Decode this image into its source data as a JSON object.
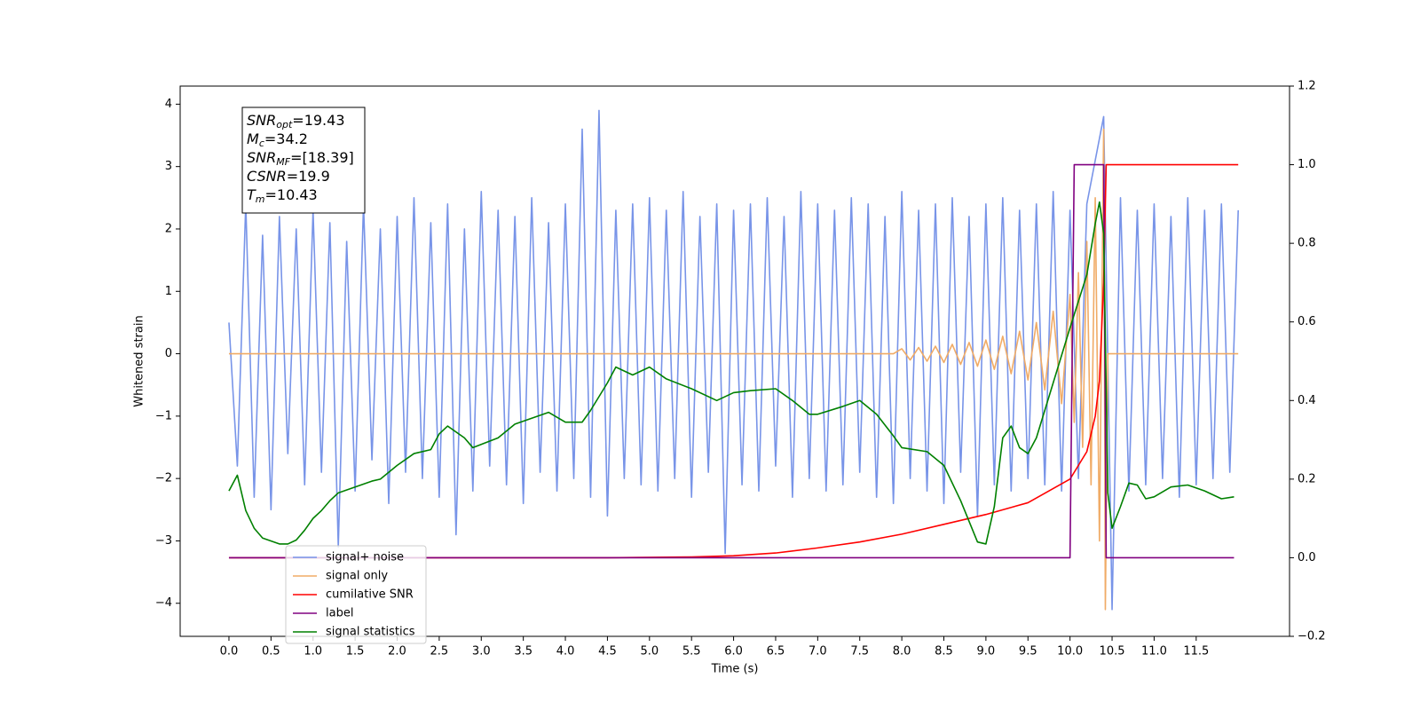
{
  "chart_data": {
    "type": "line",
    "xlabel": "Time (s)",
    "ylabel": "Whitened strain",
    "xlim": [
      -0.58,
      12.61
    ],
    "ylim": [
      -4.53,
      4.29
    ],
    "y2lim": [
      -0.2,
      1.2
    ],
    "xticks": [
      {
        "value": 0,
        "label": "0.0"
      },
      0.5,
      {
        "value": 1,
        "label": "1.0"
      },
      1.5,
      {
        "value": 2,
        "label": "2.0"
      },
      2.5,
      {
        "value": 3,
        "label": "3.0"
      },
      3.5,
      {
        "value": 4,
        "label": "4.0"
      },
      4.5,
      {
        "value": 5,
        "label": "5.0"
      },
      5.5,
      {
        "value": 6,
        "label": "6.0"
      },
      6.5,
      {
        "value": 7,
        "label": "7.0"
      },
      7.5,
      {
        "value": 8,
        "label": "8.0"
      },
      8.5,
      {
        "value": 9,
        "label": "9.0"
      },
      9.5,
      {
        "value": 10,
        "label": "10.0"
      },
      10.5,
      {
        "value": 11,
        "label": "11.0"
      },
      11.5
    ],
    "yticks": [
      {
        "value": -4,
        "label": "−4"
      },
      {
        "value": -3,
        "label": "−3"
      },
      {
        "value": -2,
        "label": "−2"
      },
      {
        "value": -1,
        "label": "−1"
      },
      0,
      1,
      2,
      3,
      4
    ],
    "y2ticks": [
      {
        "value": -0.2,
        "label": "−0.2"
      },
      {
        "value": 0,
        "label": "0.0"
      },
      0.2,
      0.4,
      0.6,
      0.8,
      {
        "value": 1,
        "label": "1.0"
      },
      1.2
    ],
    "legend": "lower left",
    "annotations": [
      {
        "main": "SNR",
        "sub": "opt",
        "text": "=19.43"
      },
      {
        "main": "M",
        "sub": "c",
        "text": "=34.2"
      },
      {
        "main": "SNR",
        "sub": "MF",
        "text": "=[18.39]"
      },
      {
        "main": "CSNR",
        "text": "=19.9"
      },
      {
        "main": "T",
        "sub": "m",
        "text": "=10.43"
      }
    ],
    "series": [
      {
        "name": "signal+ noise",
        "color": "#7894e8",
        "axis": "y",
        "x": [
          0,
          0.1,
          0.2,
          0.3,
          0.4,
          0.5,
          0.6,
          0.7,
          0.8,
          0.9,
          1,
          1.1,
          1.2,
          1.3,
          1.4,
          1.5,
          1.6,
          1.7,
          1.8,
          1.9,
          2,
          2.1,
          2.2,
          2.3,
          2.4,
          2.5,
          2.6,
          2.7,
          2.8,
          2.9,
          3,
          3.1,
          3.2,
          3.3,
          3.4,
          3.5,
          3.6,
          3.7,
          3.8,
          3.9,
          4,
          4.1,
          4.2,
          4.3,
          4.4,
          4.5,
          4.6,
          4.7,
          4.8,
          4.9,
          5,
          5.1,
          5.2,
          5.3,
          5.4,
          5.5,
          5.6,
          5.7,
          5.8,
          5.9,
          6,
          6.1,
          6.2,
          6.3,
          6.4,
          6.5,
          6.6,
          6.7,
          6.8,
          6.9,
          7,
          7.1,
          7.2,
          7.3,
          7.4,
          7.5,
          7.6,
          7.7,
          7.8,
          7.9,
          8,
          8.1,
          8.2,
          8.3,
          8.4,
          8.5,
          8.6,
          8.7,
          8.8,
          8.9,
          9,
          9.1,
          9.2,
          9.3,
          9.4,
          9.5,
          9.6,
          9.7,
          9.8,
          9.9,
          10,
          10.1,
          10.2,
          10.3,
          10.4,
          10.5,
          10.6,
          10.7,
          10.8,
          10.9,
          11,
          11.1,
          11.2,
          11.3,
          11.4,
          11.5,
          11.6,
          11.7,
          11.8,
          11.9,
          12
        ],
        "values": [
          0.5,
          -1.8,
          2.4,
          -2.3,
          1.9,
          -2.5,
          2.2,
          -1.6,
          2.0,
          -2.1,
          2.3,
          -1.9,
          2.1,
          -3.1,
          1.8,
          -2.2,
          2.4,
          -1.7,
          2.0,
          -2.4,
          2.2,
          -1.9,
          2.5,
          -2.0,
          2.1,
          -2.3,
          2.4,
          -2.9,
          2.0,
          -2.2,
          2.6,
          -1.8,
          2.3,
          -2.1,
          2.2,
          -2.4,
          2.5,
          -1.9,
          2.1,
          -2.2,
          2.4,
          -2.0,
          3.6,
          -2.3,
          3.9,
          -2.6,
          2.3,
          -2.0,
          2.4,
          -2.1,
          2.5,
          -2.2,
          2.3,
          -2.0,
          2.6,
          -2.3,
          2.2,
          -1.9,
          2.4,
          -3.2,
          2.3,
          -2.1,
          2.4,
          -2.2,
          2.5,
          -1.8,
          2.2,
          -2.3,
          2.6,
          -2.0,
          2.4,
          -2.2,
          2.3,
          -2.1,
          2.5,
          -1.9,
          2.4,
          -2.3,
          2.2,
          -2.4,
          2.6,
          -2.0,
          2.3,
          -2.2,
          2.4,
          -2.4,
          2.5,
          -1.9,
          2.2,
          -2.6,
          2.4,
          -2.1,
          2.5,
          -2.2,
          2.3,
          -2.0,
          2.4,
          -2.1,
          2.6,
          -2.2,
          2.3,
          -2.0,
          2.4,
          3.1,
          3.8,
          -4.1,
          2.5,
          -2.2,
          2.3,
          -2.1,
          2.4,
          -2.0,
          2.2,
          -2.3,
          2.5,
          -2.1,
          2.3,
          -2.0,
          2.4,
          -1.9,
          2.3
        ]
      },
      {
        "name": "signal only",
        "color": "#f0ab66",
        "axis": "y",
        "x": [
          0,
          7.9,
          8.0,
          8.1,
          8.2,
          8.3,
          8.4,
          8.5,
          8.6,
          8.7,
          8.8,
          8.9,
          9.0,
          9.1,
          9.2,
          9.3,
          9.4,
          9.5,
          9.6,
          9.7,
          9.8,
          9.9,
          10.0,
          10.05,
          10.1,
          10.15,
          10.2,
          10.25,
          10.3,
          10.35,
          10.4,
          10.42,
          10.45,
          12.0
        ],
        "values": [
          0,
          0,
          0.08,
          -0.1,
          0.1,
          -0.12,
          0.12,
          -0.14,
          0.15,
          -0.17,
          0.18,
          -0.2,
          0.22,
          -0.25,
          0.28,
          -0.32,
          0.36,
          -0.42,
          0.5,
          -0.58,
          0.68,
          -0.8,
          0.95,
          -1.1,
          1.3,
          -1.5,
          1.8,
          -2.1,
          2.5,
          -3.0,
          3.6,
          -4.1,
          0,
          0
        ]
      },
      {
        "name": "cumilative SNR",
        "color": "#ff0000",
        "axis": "y2",
        "x": [
          0,
          4.5,
          5.5,
          6.0,
          6.5,
          7.0,
          7.5,
          8.0,
          8.5,
          9.0,
          9.5,
          10.0,
          10.2,
          10.3,
          10.35,
          10.4,
          10.43,
          12.0
        ],
        "values": [
          0,
          0,
          0.002,
          0.005,
          0.012,
          0.025,
          0.04,
          0.06,
          0.085,
          0.11,
          0.14,
          0.2,
          0.27,
          0.36,
          0.45,
          0.7,
          1.0,
          1.0
        ]
      },
      {
        "name": "label",
        "color": "#800080",
        "axis": "y2",
        "x": [
          0,
          10.0,
          10.05,
          10.4,
          10.43,
          11.95
        ],
        "values": [
          0,
          0,
          1,
          1,
          0,
          0
        ]
      },
      {
        "name": "signal statistics",
        "color": "#008000",
        "axis": "y2",
        "x": [
          0,
          0.1,
          0.2,
          0.3,
          0.4,
          0.6,
          0.7,
          0.8,
          0.9,
          1.0,
          1.1,
          1.2,
          1.3,
          1.5,
          1.7,
          1.8,
          2.0,
          2.2,
          2.4,
          2.5,
          2.6,
          2.8,
          2.9,
          3.2,
          3.4,
          3.6,
          3.8,
          4.0,
          4.2,
          4.3,
          4.4,
          4.5,
          4.6,
          4.8,
          5.0,
          5.2,
          5.5,
          5.8,
          6.0,
          6.2,
          6.5,
          6.7,
          6.9,
          7.0,
          7.3,
          7.5,
          7.7,
          7.9,
          8.0,
          8.3,
          8.5,
          8.7,
          8.9,
          9.0,
          9.1,
          9.2,
          9.3,
          9.4,
          9.5,
          9.6,
          9.8,
          10.0,
          10.2,
          10.3,
          10.35,
          10.4,
          10.45,
          10.5,
          10.6,
          10.7,
          10.8,
          10.9,
          11.0,
          11.2,
          11.4,
          11.6,
          11.8,
          11.95
        ],
        "values": [
          0.17,
          0.21,
          0.12,
          0.075,
          0.05,
          0.035,
          0.035,
          0.045,
          0.07,
          0.1,
          0.12,
          0.145,
          0.165,
          0.18,
          0.195,
          0.2,
          0.235,
          0.265,
          0.275,
          0.315,
          0.335,
          0.305,
          0.28,
          0.305,
          0.34,
          0.355,
          0.37,
          0.345,
          0.345,
          0.375,
          0.41,
          0.445,
          0.485,
          0.465,
          0.485,
          0.455,
          0.43,
          0.4,
          0.42,
          0.425,
          0.43,
          0.4,
          0.365,
          0.365,
          0.385,
          0.4,
          0.365,
          0.31,
          0.28,
          0.27,
          0.235,
          0.145,
          0.04,
          0.035,
          0.13,
          0.305,
          0.335,
          0.28,
          0.265,
          0.305,
          0.445,
          0.585,
          0.72,
          0.85,
          0.905,
          0.825,
          0.165,
          0.075,
          0.13,
          0.19,
          0.185,
          0.15,
          0.155,
          0.18,
          0.185,
          0.17,
          0.15,
          0.155
        ]
      }
    ]
  }
}
